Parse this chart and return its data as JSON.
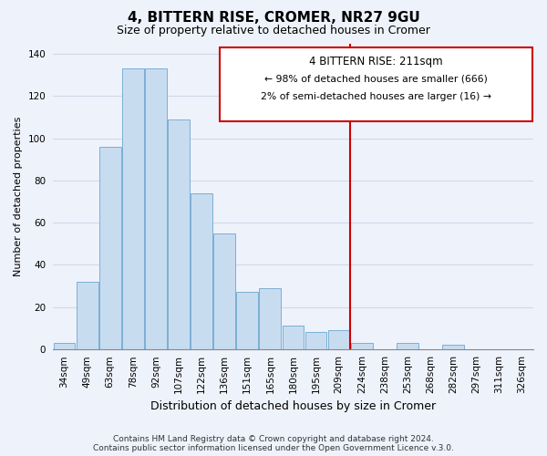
{
  "title": "4, BITTERN RISE, CROMER, NR27 9GU",
  "subtitle": "Size of property relative to detached houses in Cromer",
  "xlabel": "Distribution of detached houses by size in Cromer",
  "ylabel": "Number of detached properties",
  "bar_labels": [
    "34sqm",
    "49sqm",
    "63sqm",
    "78sqm",
    "92sqm",
    "107sqm",
    "122sqm",
    "136sqm",
    "151sqm",
    "165sqm",
    "180sqm",
    "195sqm",
    "209sqm",
    "224sqm",
    "238sqm",
    "253sqm",
    "268sqm",
    "282sqm",
    "297sqm",
    "311sqm",
    "326sqm"
  ],
  "bar_values": [
    3,
    32,
    96,
    133,
    133,
    109,
    74,
    55,
    27,
    29,
    11,
    8,
    9,
    3,
    0,
    3,
    0,
    2,
    0,
    0,
    0
  ],
  "bar_color": "#c8dcf0",
  "bar_edge_color": "#7bafd4",
  "vline_color": "#cc0000",
  "annotation_title": "4 BITTERN RISE: 211sqm",
  "annotation_left": "← 98% of detached houses are smaller (666)",
  "annotation_right": "2% of semi-detached houses are larger (16) →",
  "annotation_box_edge": "#cc0000",
  "ylim": [
    0,
    145
  ],
  "yticks": [
    0,
    20,
    40,
    60,
    80,
    100,
    120,
    140
  ],
  "footer1": "Contains HM Land Registry data © Crown copyright and database right 2024.",
  "footer2": "Contains public sector information licensed under the Open Government Licence v.3.0.",
  "background_color": "#eef2fb",
  "grid_color": "#d0d8e8",
  "title_fontsize": 11,
  "subtitle_fontsize": 9,
  "ylabel_fontsize": 8,
  "xlabel_fontsize": 9,
  "tick_fontsize": 7.5,
  "annot_title_fontsize": 8.5,
  "annot_text_fontsize": 7.8,
  "footer_fontsize": 6.5
}
